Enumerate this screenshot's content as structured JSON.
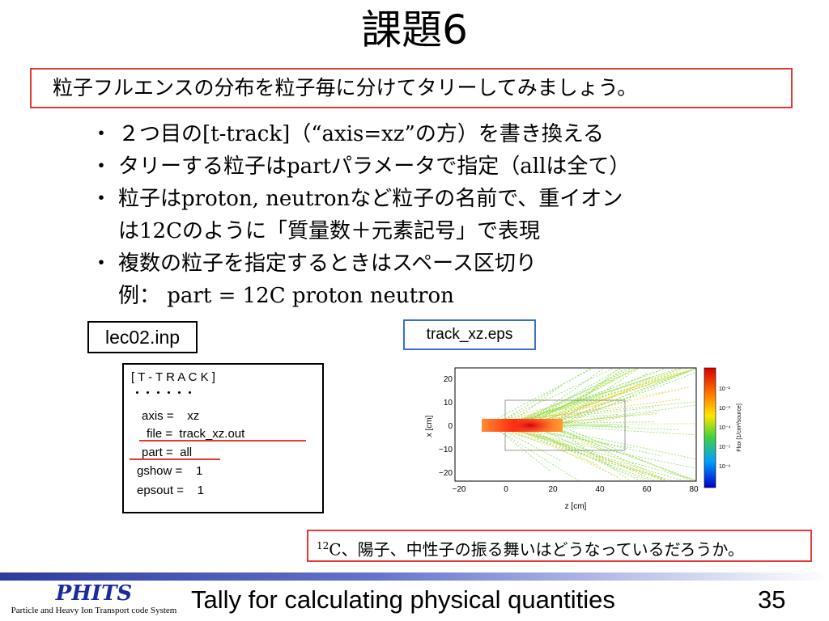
{
  "title": "課題6",
  "task": "粒子フルエンスの分布を粒子毎に分けてタリーしてみましょう。",
  "bullets": [
    {
      "bullet": "・",
      "l1a": "２つ目の",
      "l1b": "[t-track]",
      "l1c": "（",
      "l1d": "“axis=xz”",
      "l1e": "の方）を書き換える"
    },
    {
      "bullet": "・",
      "l1a": "タリーする粒子は",
      "l1b": "part",
      "l1c": "パラメータで指定（",
      "l1d": "all",
      "l1e": "は全て）"
    },
    {
      "bullet": "・",
      "l1a": "粒子は",
      "l1b": "proton, neutron",
      "l1c": "など粒子の名前で、重イオン",
      "l2a": "は",
      "l2b": "12C",
      "l2c": "のように「質量数＋元素記号」で表現"
    },
    {
      "bullet": "・",
      "l1a": "複数の粒子を指定するときはスペース区切り",
      "l2a": "例：",
      "l2b": " part = 12C proton neutron"
    }
  ],
  "input_file_label": "lec02.inp",
  "output_file_label": "track_xz.eps",
  "code": {
    "header": "[ T - T R A C K ]",
    "dots": "・・・・・・",
    "line1": "axis =    xz",
    "line2": "file =  track_xz.out",
    "line3": "part =  all",
    "line4": "gshow =    1",
    "line5": "epsout =    1"
  },
  "plot": {
    "xlabel": "z [cm]",
    "ylabel": "x [cm]",
    "xticks": [
      "−20",
      "0",
      "20",
      "40",
      "60",
      "80"
    ],
    "yticks": [
      "20",
      "10",
      "0",
      "−10",
      "−20"
    ],
    "colorbar_label": "Flux [1/cm²/source]",
    "colorbar_ticks": [
      "10⁻²",
      "10⁻³",
      "10⁻⁴",
      "10⁻⁵",
      "10⁻⁶"
    ]
  },
  "note": {
    "sup": "12",
    "a": "C",
    "b": "、陽子、中性子の振る舞いはどうなっているだろうか。"
  },
  "footer": {
    "logo": "PHITS",
    "logo_sub": "Particle and Heavy Ion Transport code System",
    "text": "Tally for calculating physical quantities",
    "page": "35"
  },
  "colors": {
    "red": "#e53935",
    "blue": "#3a6fd1",
    "logo_blue": "#1b2aa0"
  }
}
